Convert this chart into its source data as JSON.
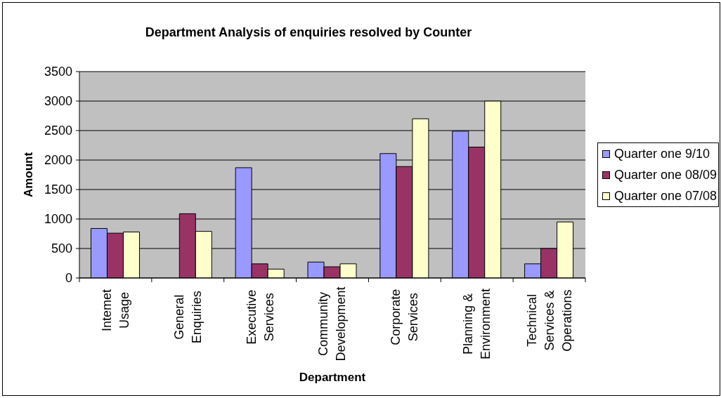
{
  "chart_data": {
    "type": "bar",
    "title": "Department Analysis of enquiries resolved by Counter",
    "xlabel": "Department",
    "ylabel": "Amount",
    "categories": [
      "Intemet Usage",
      "General Enquiries",
      "Executive Services",
      "Community Development",
      "Corporate Services",
      "Planning & Environment",
      "Technical Services & Operations"
    ],
    "series": [
      {
        "name": "Quarter one 9/10",
        "color": "#9999ff",
        "values": [
          840,
          null,
          1870,
          270,
          2110,
          2490,
          240
        ]
      },
      {
        "name": "Quarter one 08/09",
        "color": "#993366",
        "values": [
          760,
          1090,
          240,
          190,
          1890,
          2220,
          500
        ]
      },
      {
        "name": "Quarter one 07/08",
        "color": "#ffffcc",
        "values": [
          780,
          790,
          150,
          240,
          2700,
          3000,
          950
        ]
      }
    ],
    "ylim": [
      0,
      3500
    ],
    "yticks": [
      0,
      500,
      1000,
      1500,
      2000,
      2500,
      3000,
      3500
    ],
    "grid": "y",
    "legend": "right"
  }
}
